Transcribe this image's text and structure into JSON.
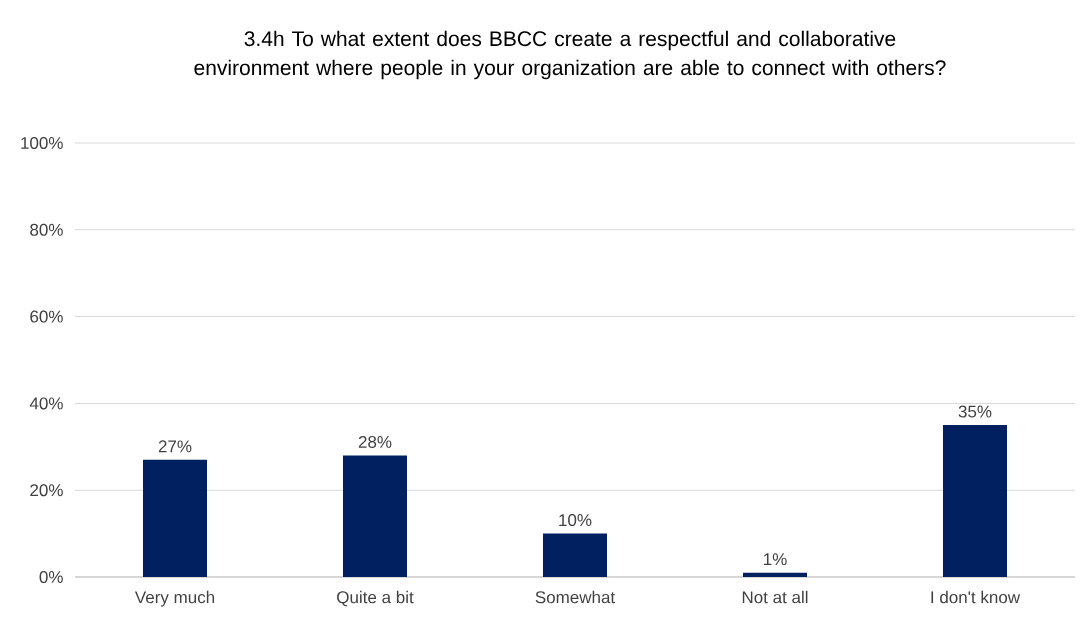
{
  "chart_data": {
    "type": "bar",
    "title": "3.4h  To what extent does BBCC create a respectful and collaborative environment where people in your organization are able to connect with others?",
    "categories": [
      "Very much",
      "Quite a bit",
      "Somewhat",
      "Not at all",
      "I don't know"
    ],
    "values": [
      27,
      28,
      10,
      1,
      35
    ],
    "value_labels": [
      "27%",
      "28%",
      "10%",
      "1%",
      "35%"
    ],
    "color": "#002060",
    "ylim": [
      0,
      100
    ],
    "yticks": [
      {
        "value": 0,
        "label": "0%"
      },
      {
        "value": 20,
        "label": "20%"
      },
      {
        "value": 40,
        "label": "40%"
      },
      {
        "value": 60,
        "label": "60%"
      },
      {
        "value": 80,
        "label": "80%"
      },
      {
        "value": 100,
        "label": "100%"
      }
    ],
    "grid": "y"
  }
}
